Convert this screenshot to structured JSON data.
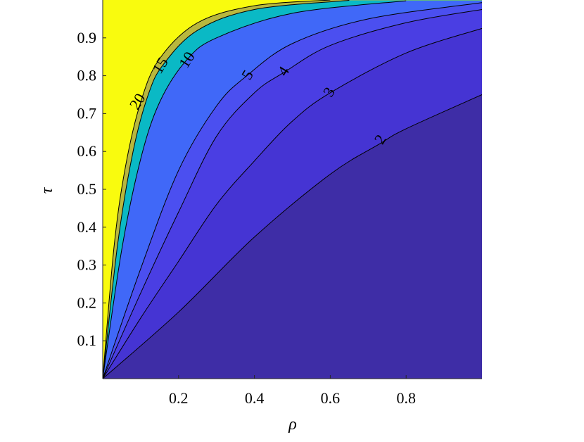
{
  "chart_data": {
    "type": "contour",
    "title": "",
    "xlabel": "ρ",
    "ylabel": "τ",
    "xlim": [
      0,
      1
    ],
    "ylim": [
      0,
      1
    ],
    "xticks": [
      0.2,
      0.4,
      0.6,
      0.8
    ],
    "yticks": [
      0.1,
      0.2,
      0.3,
      0.4,
      0.5,
      0.6,
      0.7,
      0.8,
      0.9
    ],
    "xtick_labels": [
      "0.2",
      "0.4",
      "0.6",
      "0.8"
    ],
    "ytick_labels": [
      "0.1",
      "0.2",
      "0.3",
      "0.4",
      "0.5",
      "0.6",
      "0.7",
      "0.8",
      "0.9"
    ],
    "grid": false,
    "levels": [
      {
        "label": "2",
        "value": 2,
        "line": [
          [
            0,
            0
          ],
          [
            0.2,
            0.176
          ],
          [
            0.4,
            0.374
          ],
          [
            0.6,
            0.54
          ],
          [
            0.73,
            0.62
          ],
          [
            0.8,
            0.66
          ],
          [
            1,
            0.75
          ]
        ],
        "label_at": [
          0.735,
          0.63
        ]
      },
      {
        "label": "3",
        "value": 3,
        "line": [
          [
            0,
            0
          ],
          [
            0.1,
            0.16
          ],
          [
            0.2,
            0.31
          ],
          [
            0.3,
            0.46
          ],
          [
            0.4,
            0.575
          ],
          [
            0.5,
            0.68
          ],
          [
            0.6,
            0.755
          ],
          [
            0.8,
            0.86
          ],
          [
            1,
            0.925
          ]
        ],
        "label_at": [
          0.6,
          0.755
        ]
      },
      {
        "label": "4",
        "value": 4,
        "line": [
          [
            0,
            0
          ],
          [
            0.1,
            0.226
          ],
          [
            0.2,
            0.44
          ],
          [
            0.3,
            0.64
          ],
          [
            0.4,
            0.755
          ],
          [
            0.48,
            0.81
          ],
          [
            0.6,
            0.88
          ],
          [
            0.8,
            0.94
          ],
          [
            1,
            0.975
          ]
        ],
        "label_at": [
          0.48,
          0.81
        ]
      },
      {
        "label": "5",
        "value": 5,
        "line": [
          [
            0,
            0
          ],
          [
            0.1,
            0.29
          ],
          [
            0.2,
            0.55
          ],
          [
            0.3,
            0.72
          ],
          [
            0.38,
            0.8
          ],
          [
            0.5,
            0.885
          ],
          [
            0.7,
            0.95
          ],
          [
            1,
            0.993
          ]
        ],
        "label_at": [
          0.385,
          0.8
        ]
      },
      {
        "label": "10",
        "value": 10,
        "line": [
          [
            0,
            0
          ],
          [
            0.05,
            0.34
          ],
          [
            0.1,
            0.58
          ],
          [
            0.15,
            0.73
          ],
          [
            0.22,
            0.84
          ],
          [
            0.3,
            0.9
          ],
          [
            0.5,
            0.965
          ],
          [
            0.8,
            0.998
          ]
        ],
        "label_at": [
          0.225,
          0.84
        ]
      },
      {
        "label": "15",
        "value": 15,
        "line": [
          [
            0,
            0
          ],
          [
            0.04,
            0.36
          ],
          [
            0.08,
            0.6
          ],
          [
            0.12,
            0.75
          ],
          [
            0.16,
            0.83
          ],
          [
            0.25,
            0.92
          ],
          [
            0.4,
            0.975
          ],
          [
            0.65,
            0.999
          ]
        ],
        "label_at": [
          0.155,
          0.825
        ]
      },
      {
        "label": "20",
        "value": 20,
        "line": [
          [
            0,
            0
          ],
          [
            0.03,
            0.35
          ],
          [
            0.06,
            0.56
          ],
          [
            0.1,
            0.73
          ],
          [
            0.15,
            0.845
          ],
          [
            0.25,
            0.94
          ],
          [
            0.4,
            0.985
          ],
          [
            0.6,
            1.0
          ]
        ],
        "label_at": [
          0.095,
          0.73
        ]
      }
    ],
    "colors": {
      "band_below_2": "#3e2da6",
      "band_2_3": "#4534d3",
      "band_3_4": "#4a3ee3",
      "band_4_5": "#4b4ff0",
      "band_5_10": "#4068f8",
      "band_10_15": "#0ab9c5",
      "band_15_20": "#b8b73e",
      "band_above_20": "#f9fb0e",
      "contour_line": "#000000",
      "axis": "#262626"
    }
  }
}
